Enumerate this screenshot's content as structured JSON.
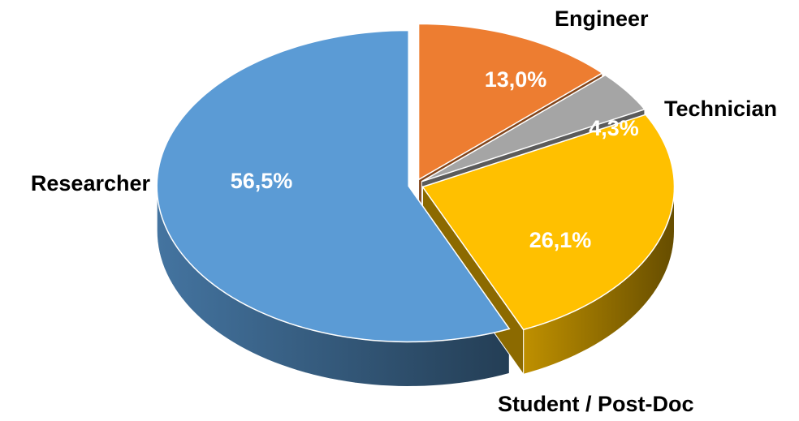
{
  "chart_data": {
    "type": "pie",
    "categories": [
      "Engineer",
      "Technician",
      "Student / Post-Doc",
      "Researcher"
    ],
    "values": [
      13.0,
      4.3,
      26.1,
      56.5
    ],
    "value_labels": [
      "13,0%",
      "4,3%",
      "26,1%",
      "56,5%"
    ],
    "colors": [
      "#ed7d31",
      "#a5a5a5",
      "#ffc000",
      "#5b9bd5"
    ]
  }
}
